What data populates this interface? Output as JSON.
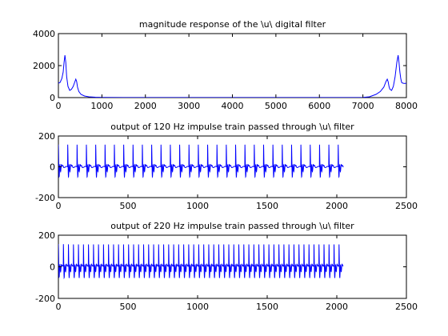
{
  "colors": {
    "line": "#0000ff",
    "axes": "#000000",
    "background": "#ffffff"
  },
  "chart_data": [
    {
      "type": "line",
      "title": "magnitude response of the \\u\\ digital filter",
      "xlabel": "",
      "ylabel": "",
      "xlim": [
        0,
        8000
      ],
      "ylim": [
        0,
        4000
      ],
      "xticks": [
        0,
        1000,
        2000,
        3000,
        4000,
        5000,
        6000,
        7000,
        8000
      ],
      "yticks": [
        0,
        2000,
        4000
      ],
      "grid": false,
      "series": [
        {
          "x": [
            0,
            40,
            80,
            110,
            130,
            150,
            170,
            190,
            220,
            260,
            300,
            340,
            380,
            400,
            420,
            440,
            470,
            520,
            600,
            700,
            850,
            1000,
            1500,
            2000,
            3000,
            4000,
            5000,
            6000,
            6500,
            7000,
            7150,
            7300,
            7400,
            7480,
            7530,
            7560,
            7580,
            7600,
            7620,
            7660,
            7700,
            7740,
            7780,
            7810,
            7830,
            7850,
            7870,
            7890,
            7920,
            7960,
            8000
          ],
          "y": [
            900,
            950,
            1200,
            1600,
            2200,
            2650,
            2200,
            1300,
            700,
            450,
            520,
            700,
            1000,
            1150,
            1000,
            650,
            380,
            200,
            100,
            50,
            25,
            15,
            8,
            5,
            5,
            5,
            5,
            5,
            8,
            15,
            50,
            200,
            380,
            650,
            1000,
            1150,
            1000,
            700,
            520,
            450,
            700,
            1300,
            2200,
            2650,
            2200,
            1600,
            1200,
            950,
            900,
            880,
            900
          ]
        }
      ]
    },
    {
      "type": "line",
      "title": "output of 120 Hz impulse train passed through \\u\\ filter",
      "xlabel": "",
      "ylabel": "",
      "xlim": [
        0,
        2500
      ],
      "ylim": [
        -200,
        200
      ],
      "xticks": [
        0,
        500,
        1000,
        1500,
        2000,
        2500
      ],
      "yticks": [
        -200,
        0,
        200
      ],
      "grid": false,
      "period": 67,
      "n_samples": 2048,
      "series": [
        {
          "y_range": [
            -65,
            115
          ]
        }
      ]
    },
    {
      "type": "line",
      "title": "output of 220 Hz impulse train passed through \\u\\ filter",
      "xlabel": "",
      "ylabel": "",
      "xlim": [
        0,
        2500
      ],
      "ylim": [
        -200,
        200
      ],
      "xticks": [
        0,
        500,
        1000,
        1500,
        2000,
        2500
      ],
      "yticks": [
        -200,
        0,
        200
      ],
      "grid": false,
      "period": 36,
      "n_samples": 2048,
      "series": [
        {
          "y_range": [
            -60,
            110
          ]
        }
      ]
    }
  ]
}
